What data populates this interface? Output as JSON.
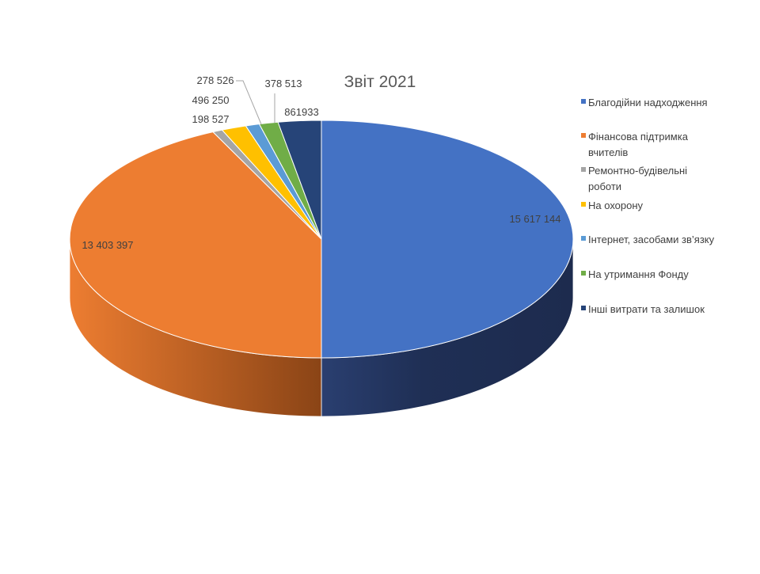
{
  "chart_data": {
    "type": "pie",
    "title": "Звіт 2021",
    "legend_position": "right",
    "slices": [
      {
        "name": "Благодійни надходження",
        "value": 15617144,
        "label": "15 617 144",
        "color": "#4472C4",
        "dark": "#1F2F55",
        "legend_lines": [
          "Благодійни надходження"
        ]
      },
      {
        "name": "Фінансова підтримка вчителів",
        "value": 13403397,
        "label": "13 403 397",
        "color": "#ED7D31",
        "dark": "#8A4416",
        "legend_lines": [
          "Фінансова підтримка",
          "вчителів"
        ]
      },
      {
        "name": "Ремонтно-будівельні роботи",
        "value": 198527,
        "label": "198 527",
        "color": "#A5A5A5",
        "dark": "#5A5A5A",
        "legend_lines": [
          "Ремонтно-будівельні",
          "роботи"
        ]
      },
      {
        "name": "На охорону",
        "value": 496250,
        "label": "496 250",
        "color": "#FFC000",
        "dark": "#8C6900",
        "legend_lines": [
          "На охорону"
        ]
      },
      {
        "name": "Інтернет, засобами зв’язку",
        "value": 278526,
        "label": "278 526",
        "color": "#5B9BD5",
        "dark": "#2E5275",
        "legend_lines": [
          "Інтернет, засобами зв’язку"
        ]
      },
      {
        "name": "На утримання Фонду",
        "value": 378513,
        "label": "378 513",
        "color": "#70AD47",
        "dark": "#3C5E25",
        "legend_lines": [
          "На утримання Фонду"
        ]
      },
      {
        "name": "Інші витрати та залишок",
        "value": 861933,
        "label": "861933",
        "color": "#264478",
        "dark": "#101E36",
        "legend_lines": [
          "Інші витрати та залишок"
        ]
      }
    ]
  }
}
